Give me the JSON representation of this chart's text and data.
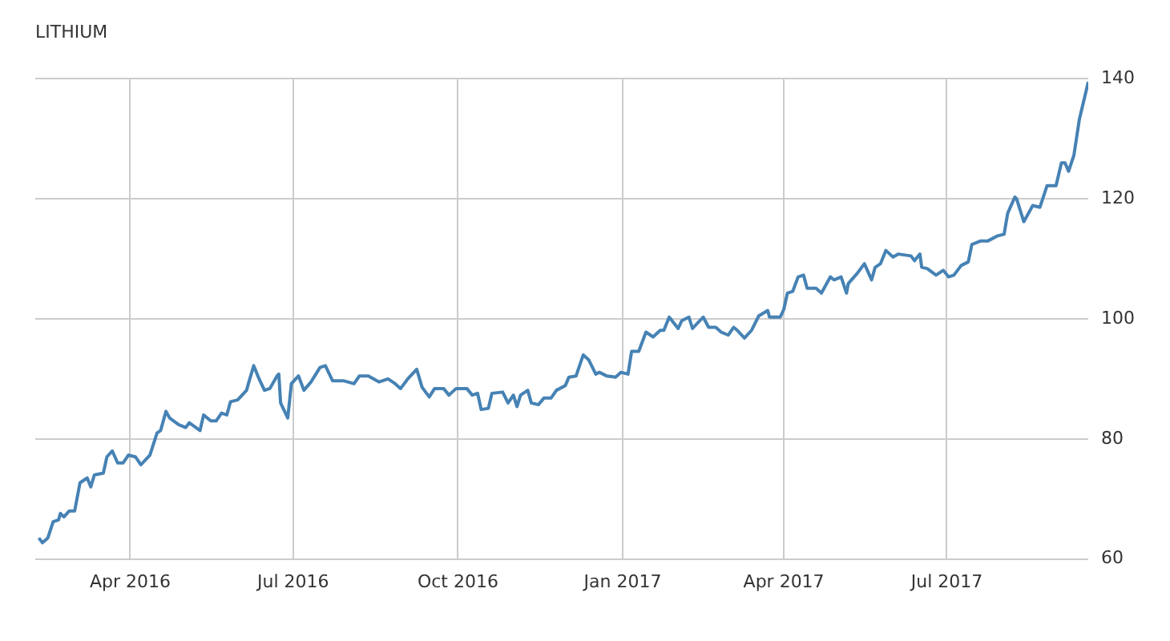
{
  "chart_data": {
    "type": "line",
    "title": "LITHIUM",
    "color": "#4682b4",
    "grid": true,
    "x": [
      "2016-02-10",
      "2016-02-12",
      "2016-02-15",
      "2016-02-18",
      "2016-02-21",
      "2016-02-22",
      "2016-02-24",
      "2016-02-27",
      "2016-03-01",
      "2016-03-04",
      "2016-03-08",
      "2016-03-10",
      "2016-03-12",
      "2016-03-17",
      "2016-03-19",
      "2016-03-22",
      "2016-03-25",
      "2016-03-28",
      "2016-03-31",
      "2016-04-04",
      "2016-04-07",
      "2016-04-12",
      "2016-04-16",
      "2016-04-18",
      "2016-04-21",
      "2016-04-23",
      "2016-04-28",
      "2016-05-02",
      "2016-05-04",
      "2016-05-10",
      "2016-05-12",
      "2016-05-16",
      "2016-05-19",
      "2016-05-22",
      "2016-05-25",
      "2016-05-27",
      "2016-05-31",
      "2016-06-05",
      "2016-06-06",
      "2016-06-09",
      "2016-06-12",
      "2016-06-15",
      "2016-06-18",
      "2016-06-22",
      "2016-06-23",
      "2016-06-24",
      "2016-06-28",
      "2016-06-30",
      "2016-07-04",
      "2016-07-07",
      "2016-07-11",
      "2016-07-16",
      "2016-07-19",
      "2016-07-23",
      "2016-07-29",
      "2016-08-04",
      "2016-08-07",
      "2016-08-12",
      "2016-08-18",
      "2016-08-23",
      "2016-08-27",
      "2016-08-30",
      "2016-09-03",
      "2016-09-08",
      "2016-09-11",
      "2016-09-15",
      "2016-09-18",
      "2016-09-23",
      "2016-09-26",
      "2016-09-30",
      "2016-10-06",
      "2016-10-09",
      "2016-10-12",
      "2016-10-14",
      "2016-10-18",
      "2016-10-20",
      "2016-10-26",
      "2016-10-29",
      "2016-11-01",
      "2016-11-03",
      "2016-11-05",
      "2016-11-09",
      "2016-11-11",
      "2016-11-15",
      "2016-11-18",
      "2016-11-22",
      "2016-11-25",
      "2016-11-30",
      "2016-12-02",
      "2016-12-06",
      "2016-12-10",
      "2016-12-13",
      "2016-12-17",
      "2016-12-19",
      "2016-12-23",
      "2016-12-28",
      "2016-12-31",
      "2017-01-04",
      "2017-01-06",
      "2017-01-10",
      "2017-01-14",
      "2017-01-18",
      "2017-01-22",
      "2017-01-24",
      "2017-01-27",
      "2017-02-01",
      "2017-02-03",
      "2017-02-07",
      "2017-02-09",
      "2017-02-15",
      "2017-02-18",
      "2017-02-22",
      "2017-02-25",
      "2017-03-01",
      "2017-03-04",
      "2017-03-06",
      "2017-03-10",
      "2017-03-14",
      "2017-03-18",
      "2017-03-23",
      "2017-03-24",
      "2017-03-30",
      "2017-04-01",
      "2017-04-03",
      "2017-04-06",
      "2017-04-09",
      "2017-04-12",
      "2017-04-14",
      "2017-04-19",
      "2017-04-22",
      "2017-04-27",
      "2017-04-29",
      "2017-05-03",
      "2017-05-06",
      "2017-05-07",
      "2017-05-12",
      "2017-05-16",
      "2017-05-20",
      "2017-05-22",
      "2017-05-25",
      "2017-05-28",
      "2017-06-01",
      "2017-06-04",
      "2017-06-11",
      "2017-06-13",
      "2017-06-16",
      "2017-06-17",
      "2017-06-20",
      "2017-06-25",
      "2017-06-29",
      "2017-07-02",
      "2017-07-05",
      "2017-07-09",
      "2017-07-13",
      "2017-07-15",
      "2017-07-20",
      "2017-07-24",
      "2017-07-29",
      "2017-08-02",
      "2017-08-04",
      "2017-08-08",
      "2017-08-09",
      "2017-08-13",
      "2017-08-18",
      "2017-08-22",
      "2017-08-26",
      "2017-08-31",
      "2017-09-03",
      "2017-09-05",
      "2017-09-07",
      "2017-09-10",
      "2017-09-13",
      "2017-09-18"
    ],
    "values": [
      63.5,
      62.7,
      63.5,
      66.2,
      66.5,
      67.6,
      67,
      68,
      68,
      72.7,
      73.5,
      72,
      74,
      74.3,
      77,
      78,
      76,
      76,
      77.3,
      77,
      75.7,
      77.3,
      81,
      81.4,
      84.6,
      83.5,
      82.4,
      81.9,
      82.7,
      81.4,
      84,
      83,
      83,
      84.3,
      84,
      86.2,
      86.5,
      88.1,
      89.2,
      92.2,
      90,
      88.1,
      88.4,
      90.5,
      90.8,
      86,
      83.5,
      89.2,
      90.5,
      88.1,
      89.5,
      91.9,
      92.2,
      89.7,
      89.7,
      89.2,
      90.5,
      90.5,
      89.5,
      90,
      89.2,
      88.4,
      90,
      91.6,
      88.6,
      87,
      88.4,
      88.4,
      87.3,
      88.4,
      88.4,
      87.3,
      87.6,
      84.9,
      85.1,
      87.6,
      87.8,
      86,
      87.3,
      85.4,
      87.3,
      88.1,
      86,
      85.7,
      86.8,
      86.8,
      88.1,
      88.9,
      90.3,
      90.5,
      94,
      93.2,
      90.8,
      91.1,
      90.5,
      90.3,
      91.1,
      90.8,
      94.6,
      94.6,
      97.8,
      97,
      98.1,
      98.1,
      100.3,
      98.4,
      99.7,
      100.3,
      98.4,
      100.3,
      98.6,
      98.6,
      97.8,
      97.3,
      98.6,
      98.1,
      96.8,
      98.1,
      100.5,
      101.4,
      100.3,
      100.3,
      101.6,
      104.3,
      104.6,
      107,
      107.3,
      105.1,
      105.1,
      104.3,
      107,
      106.5,
      107,
      104.3,
      105.9,
      107.6,
      109.2,
      106.5,
      108.6,
      109.2,
      111.4,
      110.3,
      110.8,
      110.5,
      109.7,
      110.8,
      108.6,
      108.4,
      107.3,
      108.1,
      107,
      107.3,
      108.9,
      109.5,
      112.4,
      113,
      113,
      113.8,
      114.1,
      117.6,
      120.3,
      120,
      116.2,
      118.9,
      118.6,
      122.2,
      122.2,
      126,
      126,
      124.6,
      127.3,
      133.2,
      139.5
    ],
    "xlim": [
      "2016-02-08",
      "2017-09-18"
    ],
    "xticks": [
      {
        "value": "2016-04-01",
        "label": "Apr 2016"
      },
      {
        "value": "2016-07-01",
        "label": "Jul 2016"
      },
      {
        "value": "2016-10-01",
        "label": "Oct 2016"
      },
      {
        "value": "2017-01-01",
        "label": "Jan 2017"
      },
      {
        "value": "2017-04-01",
        "label": "Apr 2017"
      },
      {
        "value": "2017-07-01",
        "label": "Jul 2017"
      }
    ],
    "ylim": [
      60,
      140
    ],
    "yticks": [
      60,
      80,
      100,
      120,
      140
    ]
  }
}
